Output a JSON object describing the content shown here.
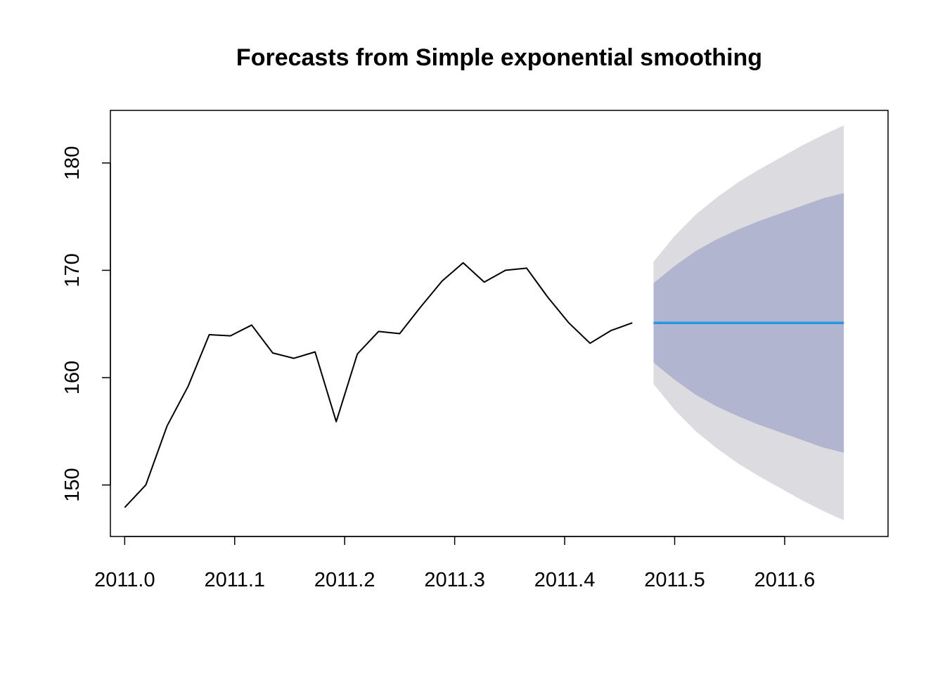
{
  "chart_data": {
    "type": "line",
    "title": "Forecasts from Simple exponential smoothing",
    "xlabel": "",
    "ylabel": "",
    "xlim": [
      2010.987,
      2011.694
    ],
    "ylim": [
      145.2,
      184.9
    ],
    "x_ticks": [
      2011.0,
      2011.1,
      2011.2,
      2011.3,
      2011.4,
      2011.5,
      2011.6
    ],
    "x_tick_labels": [
      "2011.0",
      "2011.1",
      "2011.2",
      "2011.3",
      "2011.4",
      "2011.5",
      "2011.6"
    ],
    "y_ticks": [
      150,
      160,
      170,
      180
    ],
    "y_tick_labels": [
      "150",
      "160",
      "170",
      "180"
    ],
    "grid": false,
    "colors": {
      "observed": "#000000",
      "forecast": "#2297e6",
      "band80": "#b1b5cf",
      "band95": "#dbdbe0"
    },
    "series": [
      {
        "x": [
          2011.0,
          2011.0192,
          2011.0385,
          2011.0577,
          2011.0769,
          2011.0962,
          2011.1154,
          2011.1346,
          2011.1538,
          2011.1731,
          2011.1923,
          2011.2115,
          2011.2308,
          2011.25,
          2011.2692,
          2011.2885,
          2011.3077,
          2011.3269,
          2011.3462,
          2011.3654,
          2011.3846,
          2011.4038,
          2011.4231,
          2011.4423,
          2011.4615
        ],
        "values": [
          147.9,
          150.0,
          155.5,
          159.2,
          164.0,
          163.9,
          164.9,
          162.3,
          161.8,
          162.4,
          155.9,
          162.2,
          164.3,
          164.1,
          166.6,
          169.0,
          170.7,
          168.9,
          170.0,
          170.2,
          167.5,
          165.1,
          163.2,
          164.4,
          165.1
        ]
      },
      {
        "x": [
          2011.4808,
          2011.5,
          2011.5192,
          2011.5385,
          2011.5577,
          2011.5769,
          2011.5962,
          2011.6154,
          2011.6346,
          2011.6538
        ],
        "values": [
          165.1,
          165.1,
          165.1,
          165.1,
          165.1,
          165.1,
          165.1,
          165.1,
          165.1,
          165.1
        ],
        "lo80": [
          161.4,
          159.8,
          158.4,
          157.3,
          156.4,
          155.6,
          154.9,
          154.2,
          153.5,
          153.0
        ],
        "hi80": [
          168.8,
          170.4,
          171.8,
          172.9,
          173.8,
          174.6,
          175.3,
          176.0,
          176.7,
          177.2
        ],
        "lo95": [
          159.4,
          157.0,
          155.0,
          153.4,
          152.0,
          150.8,
          149.7,
          148.6,
          147.6,
          146.7
        ],
        "hi95": [
          170.8,
          173.2,
          175.2,
          176.8,
          178.2,
          179.4,
          180.5,
          181.6,
          182.6,
          183.5
        ]
      }
    ]
  }
}
